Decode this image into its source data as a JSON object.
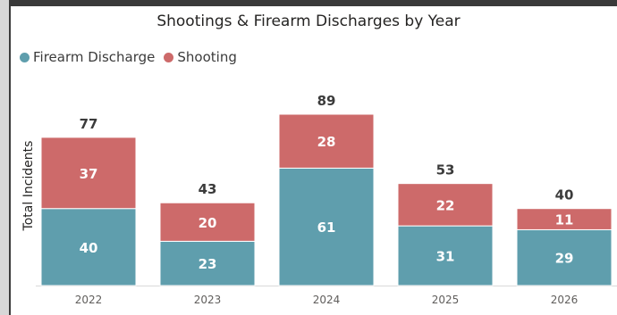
{
  "chart_data": {
    "type": "bar",
    "stacked": true,
    "title": "Shootings & Firearm Discharges by Year",
    "ylabel": "Total Incidents",
    "xlabel": "",
    "categories": [
      "2022",
      "2023",
      "2024",
      "2025",
      "2026"
    ],
    "series": [
      {
        "name": "Firearm Discharge",
        "values": [
          40,
          23,
          61,
          31,
          29
        ],
        "color": "#5f9ead"
      },
      {
        "name": "Shooting",
        "values": [
          37,
          20,
          28,
          22,
          11
        ],
        "color": "#cd6a6a"
      }
    ],
    "totals": [
      "77",
      "43",
      "89",
      "53",
      "40"
    ],
    "ylim": [
      0,
      89
    ],
    "grid": false,
    "legend_position": "top-left"
  }
}
